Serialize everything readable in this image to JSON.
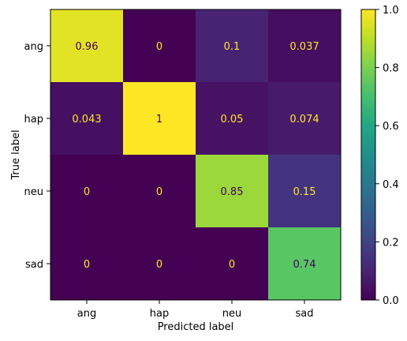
{
  "chart_data": {
    "type": "heatmap",
    "xlabel": "Predicted label",
    "ylabel": "True label",
    "x_categories": [
      "ang",
      "hap",
      "neu",
      "sad"
    ],
    "y_categories": [
      "ang",
      "hap",
      "neu",
      "sad"
    ],
    "values": [
      [
        0.96,
        0,
        0.1,
        0.037
      ],
      [
        0.043,
        1,
        0.05,
        0.074
      ],
      [
        0,
        0,
        0.85,
        0.15
      ],
      [
        0,
        0,
        0,
        0.74
      ]
    ],
    "value_labels": [
      [
        "0.96",
        "0",
        "0.1",
        "0.037"
      ],
      [
        "0.043",
        "1",
        "0.05",
        "0.074"
      ],
      [
        "0",
        "0",
        "0.85",
        "0.15"
      ],
      [
        "0",
        "0",
        "0",
        "0.74"
      ]
    ],
    "colorbar": {
      "colormap": "viridis",
      "range": [
        0.0,
        1.0
      ],
      "ticks": [
        "0.0",
        "0.2",
        "0.4",
        "0.6",
        "0.8",
        "1.0"
      ]
    },
    "grid": false
  }
}
